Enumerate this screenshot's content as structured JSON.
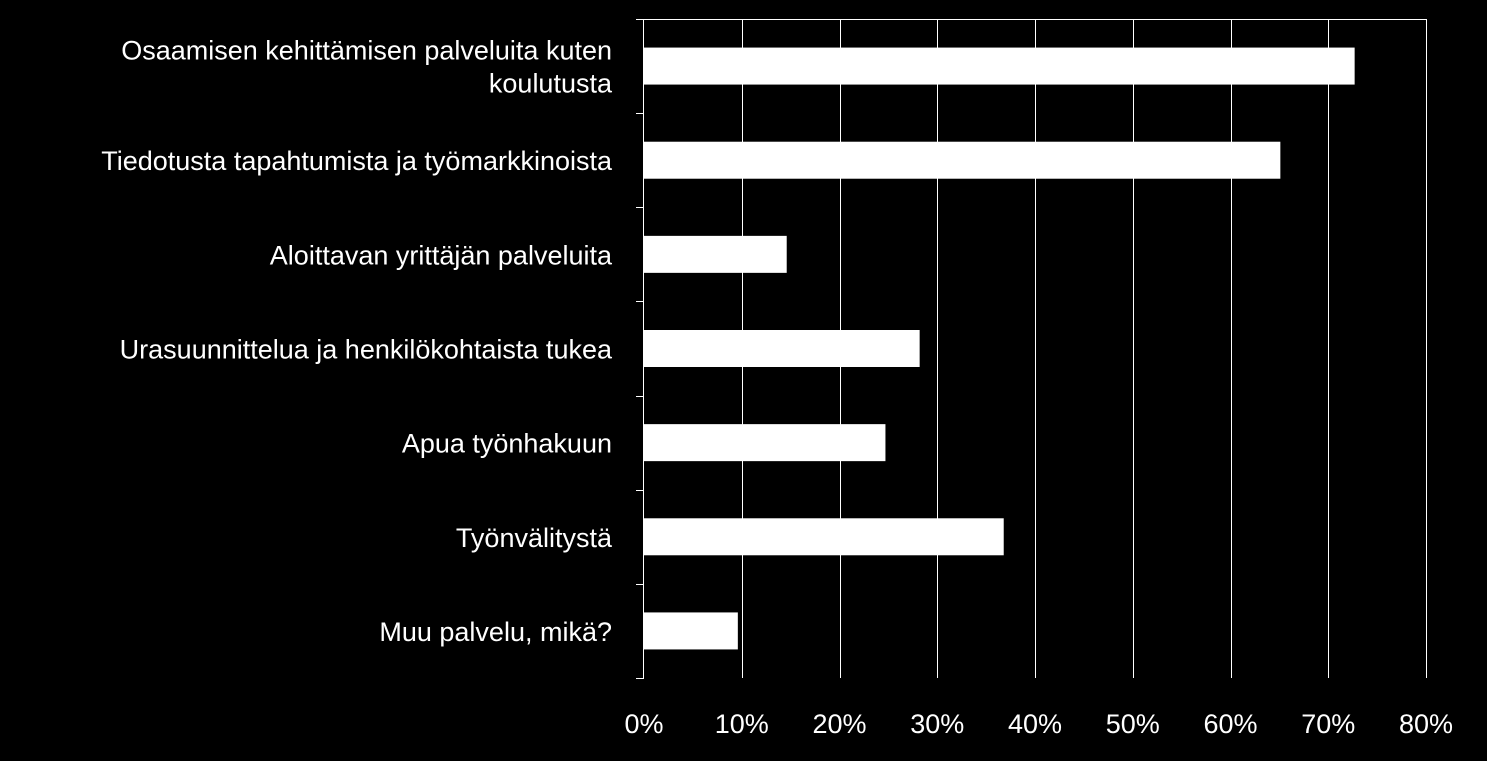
{
  "chart_data": {
    "type": "bar",
    "orientation": "horizontal",
    "categories": [
      "Osaamisen kehittämisen palveluita kuten koulutusta",
      "Tiedotusta tapahtumista ja työmarkkinoista",
      "Aloittavan yrittäjän palveluita",
      "Urasuunnittelua ja henkilökohtaista tukea",
      "Apua työnhakuun",
      "Työnvälitystä",
      "Muu palvelu, mikä?"
    ],
    "category_lines": [
      [
        "Osaamisen kehittämisen palveluita kuten",
        "koulutusta"
      ],
      [
        "Tiedotusta tapahtumista ja työmarkkinoista"
      ],
      [
        "Aloittavan yrittäjän palveluita"
      ],
      [
        "Urasuunnittelua ja henkilökohtaista tukea"
      ],
      [
        "Apua työnhakuun"
      ],
      [
        "Työnvälitystä"
      ],
      [
        "Muu palvelu, mikä?"
      ]
    ],
    "values": [
      72.7,
      65.1,
      14.6,
      28.2,
      24.7,
      36.8,
      9.6
    ],
    "unit": "%",
    "xlim": [
      0,
      80
    ],
    "xticks": [
      0,
      10,
      20,
      30,
      40,
      50,
      60,
      70,
      80
    ],
    "xtick_labels": [
      "0%",
      "10%",
      "20%",
      "30%",
      "40%",
      "50%",
      "60%",
      "70%",
      "80%"
    ],
    "grid": "vertical",
    "legend": "none",
    "colors": {
      "background": "#000000",
      "bar": "#ffffff",
      "grid": "#ffffff",
      "text": "#ffffff"
    }
  }
}
